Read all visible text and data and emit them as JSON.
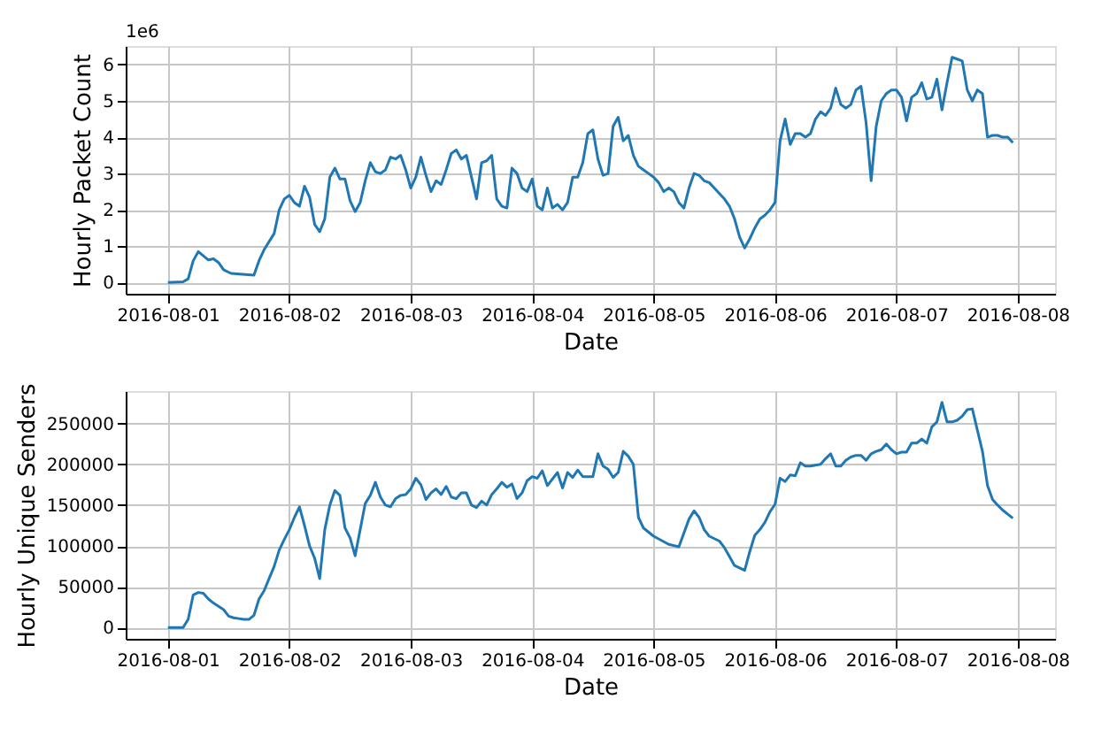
{
  "chart_data": [
    {
      "type": "line",
      "xlabel": "Date",
      "ylabel": "Hourly Packet Count",
      "annotations": [
        "1e6"
      ],
      "grid": true,
      "xlim": [
        "2016-07-31T15:39",
        "2016-08-08T07:21"
      ],
      "ylim": [
        -0.31,
        6.51
      ],
      "xticks": [
        "2016-08-01",
        "2016-08-02",
        "2016-08-03",
        "2016-08-04",
        "2016-08-05",
        "2016-08-06",
        "2016-08-07",
        "2016-08-08"
      ],
      "yticks": [
        0,
        1,
        2,
        3,
        4,
        5,
        6
      ],
      "x": [
        "2016-08-01T00:00",
        "2016-08-01T03:00",
        "2016-08-01T04:00",
        "2016-08-01T05:00",
        "2016-08-01T06:00",
        "2016-08-01T08:00",
        "2016-08-01T09:00",
        "2016-08-01T10:00",
        "2016-08-01T11:00",
        "2016-08-01T12:30",
        "2016-08-01T17:00",
        "2016-08-01T18:00",
        "2016-08-01T19:00",
        "2016-08-01T21:00",
        "2016-08-01T22:00",
        "2016-08-01T23:00",
        "2016-08-02T00:00",
        "2016-08-02T01:00",
        "2016-08-02T02:00",
        "2016-08-02T03:00",
        "2016-08-02T04:00",
        "2016-08-02T05:00",
        "2016-08-02T06:00",
        "2016-08-02T07:00",
        "2016-08-02T08:00",
        "2016-08-02T09:00",
        "2016-08-02T10:00",
        "2016-08-02T11:00",
        "2016-08-02T12:00",
        "2016-08-02T13:00",
        "2016-08-02T14:00",
        "2016-08-02T15:00",
        "2016-08-02T16:00",
        "2016-08-02T17:00",
        "2016-08-02T18:00",
        "2016-08-02T19:00",
        "2016-08-02T20:00",
        "2016-08-02T21:00",
        "2016-08-02T22:00",
        "2016-08-02T23:00",
        "2016-08-03T00:00",
        "2016-08-03T01:00",
        "2016-08-03T02:00",
        "2016-08-03T03:00",
        "2016-08-03T04:00",
        "2016-08-03T05:00",
        "2016-08-03T06:00",
        "2016-08-03T07:00",
        "2016-08-03T08:00",
        "2016-08-03T09:00",
        "2016-08-03T10:00",
        "2016-08-03T11:00",
        "2016-08-03T12:00",
        "2016-08-03T13:00",
        "2016-08-03T14:00",
        "2016-08-03T15:00",
        "2016-08-03T16:00",
        "2016-08-03T17:00",
        "2016-08-03T18:00",
        "2016-08-03T19:00",
        "2016-08-03T20:00",
        "2016-08-03T21:00",
        "2016-08-03T22:00",
        "2016-08-03T23:00",
        "2016-08-04T00:00",
        "2016-08-04T01:00",
        "2016-08-04T02:00",
        "2016-08-04T03:00",
        "2016-08-04T04:00",
        "2016-08-04T05:00",
        "2016-08-04T06:00",
        "2016-08-04T07:00",
        "2016-08-04T08:00",
        "2016-08-04T09:00",
        "2016-08-04T10:00",
        "2016-08-04T11:00",
        "2016-08-04T12:00",
        "2016-08-04T13:00",
        "2016-08-04T14:00",
        "2016-08-04T15:00",
        "2016-08-04T16:00",
        "2016-08-04T17:00",
        "2016-08-04T18:00",
        "2016-08-04T19:00",
        "2016-08-04T20:00",
        "2016-08-04T21:00",
        "2016-08-04T22:00",
        "2016-08-04T23:00",
        "2016-08-05T00:00",
        "2016-08-05T01:00",
        "2016-08-05T02:00",
        "2016-08-05T03:00",
        "2016-08-05T04:00",
        "2016-08-05T05:00",
        "2016-08-05T06:00",
        "2016-08-05T07:00",
        "2016-08-05T08:00",
        "2016-08-05T09:00",
        "2016-08-05T10:00",
        "2016-08-05T11:00",
        "2016-08-05T12:00",
        "2016-08-05T13:00",
        "2016-08-05T14:00",
        "2016-08-05T15:00",
        "2016-08-05T16:00",
        "2016-08-05T17:00",
        "2016-08-05T18:00",
        "2016-08-05T19:00",
        "2016-08-05T20:00",
        "2016-08-05T21:00",
        "2016-08-05T22:00",
        "2016-08-05T23:00",
        "2016-08-06T00:00",
        "2016-08-06T01:00",
        "2016-08-06T02:00",
        "2016-08-06T03:00",
        "2016-08-06T04:00",
        "2016-08-06T05:00",
        "2016-08-06T06:00",
        "2016-08-06T07:00",
        "2016-08-06T08:00",
        "2016-08-06T09:00",
        "2016-08-06T10:00",
        "2016-08-06T11:00",
        "2016-08-06T12:00",
        "2016-08-06T13:00",
        "2016-08-06T14:00",
        "2016-08-06T15:00",
        "2016-08-06T16:00",
        "2016-08-06T17:00",
        "2016-08-06T18:00",
        "2016-08-06T19:00",
        "2016-08-06T20:00",
        "2016-08-06T21:00",
        "2016-08-06T22:00",
        "2016-08-06T23:00",
        "2016-08-07T00:00",
        "2016-08-07T01:00",
        "2016-08-07T02:00",
        "2016-08-07T03:00",
        "2016-08-07T04:00",
        "2016-08-07T05:00",
        "2016-08-07T06:00",
        "2016-08-07T07:00",
        "2016-08-07T08:00",
        "2016-08-07T09:00",
        "2016-08-07T10:00",
        "2016-08-07T11:00",
        "2016-08-07T12:00",
        "2016-08-07T13:00",
        "2016-08-07T14:00",
        "2016-08-07T15:00",
        "2016-08-07T16:00",
        "2016-08-07T17:00",
        "2016-08-07T18:00",
        "2016-08-07T19:00",
        "2016-08-07T20:00",
        "2016-08-07T21:00",
        "2016-08-07T22:00",
        "2016-08-07T23:00"
      ],
      "series": [
        {
          "color": "#1f77b4",
          "values": [
            0,
            0.02,
            0.1,
            0.6,
            0.85,
            0.62,
            0.65,
            0.55,
            0.35,
            0.25,
            0.2,
            0.6,
            0.9,
            1.35,
            2.0,
            2.3,
            2.4,
            2.2,
            2.1,
            2.65,
            2.35,
            1.6,
            1.4,
            1.75,
            2.9,
            3.15,
            2.85,
            2.85,
            2.25,
            1.95,
            2.2,
            2.8,
            3.3,
            3.05,
            3.0,
            3.1,
            3.45,
            3.4,
            3.5,
            3.1,
            2.6,
            2.9,
            3.45,
            2.95,
            2.5,
            2.8,
            2.7,
            3.1,
            3.55,
            3.65,
            3.4,
            3.5,
            2.9,
            2.3,
            3.3,
            3.35,
            3.5,
            2.3,
            2.1,
            2.05,
            3.15,
            3.0,
            2.6,
            2.5,
            2.85,
            2.1,
            2.0,
            2.6,
            2.05,
            2.15,
            2.0,
            2.2,
            2.9,
            2.9,
            3.3,
            4.1,
            4.2,
            3.4,
            2.95,
            3.0,
            4.3,
            4.55,
            3.9,
            4.05,
            3.5,
            3.2,
            3.1,
            3.0,
            2.9,
            2.75,
            2.5,
            2.6,
            2.5,
            2.2,
            2.05,
            2.6,
            3.0,
            2.95,
            2.8,
            2.75,
            2.6,
            2.45,
            2.3,
            2.1,
            1.75,
            1.25,
            0.95,
            1.2,
            1.5,
            1.75,
            1.85,
            2.0,
            2.2,
            3.9,
            4.5,
            3.8,
            4.1,
            4.1,
            4.0,
            4.1,
            4.5,
            4.7,
            4.6,
            4.8,
            5.35,
            4.9,
            4.8,
            4.9,
            5.3,
            5.4,
            4.4,
            2.8,
            4.3,
            5.0,
            5.2,
            5.3,
            5.3,
            5.1,
            4.45,
            5.1,
            5.2,
            5.5,
            5.05,
            5.1,
            5.6,
            4.75,
            5.5,
            6.2,
            6.15,
            6.1,
            5.3,
            5.0,
            5.3,
            5.2,
            4.0,
            4.05,
            4.05,
            4.0,
            4.0,
            3.85
          ]
        }
      ]
    },
    {
      "type": "line",
      "xlabel": "Date",
      "ylabel": "Hourly Unique Senders",
      "grid": true,
      "xlim": [
        "2016-07-31T15:39",
        "2016-08-08T07:21"
      ],
      "ylim": [
        -13800,
        289800
      ],
      "xticks": [
        "2016-08-01",
        "2016-08-02",
        "2016-08-03",
        "2016-08-04",
        "2016-08-05",
        "2016-08-06",
        "2016-08-07",
        "2016-08-08"
      ],
      "yticks": [
        0,
        50000,
        100000,
        150000,
        200000,
        250000
      ],
      "x": [
        "2016-08-01T00:00",
        "2016-08-01T03:00",
        "2016-08-01T04:00",
        "2016-08-01T05:00",
        "2016-08-01T06:00",
        "2016-08-01T07:00",
        "2016-08-01T08:00",
        "2016-08-01T09:00",
        "2016-08-01T10:00",
        "2016-08-01T11:00",
        "2016-08-01T12:00",
        "2016-08-01T13:00",
        "2016-08-01T14:00",
        "2016-08-01T15:00",
        "2016-08-01T16:00",
        "2016-08-01T17:00",
        "2016-08-01T18:00",
        "2016-08-01T19:00",
        "2016-08-01T20:00",
        "2016-08-01T21:00",
        "2016-08-01T22:00",
        "2016-08-01T23:00",
        "2016-08-02T00:00",
        "2016-08-02T01:00",
        "2016-08-02T02:00",
        "2016-08-02T03:00",
        "2016-08-02T04:00",
        "2016-08-02T05:00",
        "2016-08-02T06:00",
        "2016-08-02T07:00",
        "2016-08-02T08:00",
        "2016-08-02T09:00",
        "2016-08-02T10:00",
        "2016-08-02T11:00",
        "2016-08-02T12:00",
        "2016-08-02T13:00",
        "2016-08-02T14:00",
        "2016-08-02T15:00",
        "2016-08-02T16:00",
        "2016-08-02T17:00",
        "2016-08-02T18:00",
        "2016-08-02T19:00",
        "2016-08-02T20:00",
        "2016-08-02T21:00",
        "2016-08-02T22:00",
        "2016-08-02T23:00",
        "2016-08-03T00:00",
        "2016-08-03T01:00",
        "2016-08-03T02:00",
        "2016-08-03T03:00",
        "2016-08-03T04:00",
        "2016-08-03T05:00",
        "2016-08-03T06:00",
        "2016-08-03T07:00",
        "2016-08-03T08:00",
        "2016-08-03T09:00",
        "2016-08-03T10:00",
        "2016-08-03T11:00",
        "2016-08-03T12:00",
        "2016-08-03T13:00",
        "2016-08-03T14:00",
        "2016-08-03T15:00",
        "2016-08-03T16:00",
        "2016-08-03T17:00",
        "2016-08-03T18:00",
        "2016-08-03T19:00",
        "2016-08-03T20:00",
        "2016-08-03T21:00",
        "2016-08-03T22:00",
        "2016-08-03T23:00",
        "2016-08-04T00:00",
        "2016-08-04T01:00",
        "2016-08-04T02:00",
        "2016-08-04T03:00",
        "2016-08-04T05:00",
        "2016-08-04T06:00",
        "2016-08-04T07:00",
        "2016-08-04T08:00",
        "2016-08-04T09:00",
        "2016-08-04T10:00",
        "2016-08-04T12:00",
        "2016-08-04T13:00",
        "2016-08-04T14:00",
        "2016-08-04T15:00",
        "2016-08-04T16:00",
        "2016-08-04T17:00",
        "2016-08-04T18:00",
        "2016-08-04T19:00",
        "2016-08-04T20:00",
        "2016-08-04T21:00",
        "2016-08-04T22:00",
        "2016-08-05T00:00",
        "2016-08-05T03:00",
        "2016-08-05T05:00",
        "2016-08-05T07:00",
        "2016-08-05T08:00",
        "2016-08-05T09:00",
        "2016-08-05T10:00",
        "2016-08-05T11:00",
        "2016-08-05T13:00",
        "2016-08-05T14:00",
        "2016-08-05T15:00",
        "2016-08-05T16:00",
        "2016-08-05T18:00",
        "2016-08-05T19:00",
        "2016-08-05T20:00",
        "2016-08-05T21:00",
        "2016-08-05T22:00",
        "2016-08-05T23:00",
        "2016-08-06T00:00",
        "2016-08-06T01:00",
        "2016-08-06T02:00",
        "2016-08-06T03:00",
        "2016-08-06T04:00",
        "2016-08-06T05:00",
        "2016-08-06T06:00",
        "2016-08-06T07:00",
        "2016-08-06T09:00",
        "2016-08-06T10:00",
        "2016-08-06T11:00",
        "2016-08-06T12:00",
        "2016-08-06T13:00",
        "2016-08-06T14:00",
        "2016-08-06T15:00",
        "2016-08-06T16:00",
        "2016-08-06T17:00",
        "2016-08-06T18:00",
        "2016-08-06T19:00",
        "2016-08-06T20:00",
        "2016-08-06T21:00",
        "2016-08-06T22:00",
        "2016-08-06T23:00",
        "2016-08-07T00:00",
        "2016-08-07T01:00",
        "2016-08-07T02:00",
        "2016-08-07T03:00",
        "2016-08-07T04:00",
        "2016-08-07T05:00",
        "2016-08-07T06:00",
        "2016-08-07T07:00",
        "2016-08-07T08:00",
        "2016-08-07T09:00",
        "2016-08-07T10:00",
        "2016-08-07T11:00",
        "2016-08-07T12:00",
        "2016-08-07T13:00",
        "2016-08-07T14:00",
        "2016-08-07T15:00",
        "2016-08-07T16:00",
        "2016-08-07T17:00",
        "2016-08-07T18:00",
        "2016-08-07T19:00",
        "2016-08-07T20:00",
        "2016-08-07T21:00",
        "2016-08-07T22:00",
        "2016-08-07T23:00"
      ],
      "series": [
        {
          "color": "#1f77b4",
          "values": [
            0,
            0,
            10000,
            40000,
            43000,
            42000,
            35000,
            30000,
            26000,
            22000,
            14000,
            12000,
            11000,
            10000,
            10000,
            15000,
            35000,
            45000,
            60000,
            75000,
            95000,
            108000,
            120000,
            135000,
            148000,
            125000,
            100000,
            85000,
            60000,
            120000,
            150000,
            168000,
            162000,
            122000,
            110000,
            88000,
            120000,
            152000,
            162000,
            178000,
            160000,
            150000,
            148000,
            158000,
            162000,
            163000,
            170000,
            183000,
            175000,
            157000,
            165000,
            170000,
            163000,
            173000,
            160000,
            158000,
            165000,
            165000,
            150000,
            147000,
            155000,
            150000,
            163000,
            170000,
            178000,
            172000,
            176000,
            158000,
            165000,
            180000,
            185000,
            183000,
            192000,
            174000,
            190000,
            171000,
            190000,
            184000,
            193000,
            185000,
            185000,
            213000,
            198000,
            194000,
            184000,
            190000,
            216000,
            210000,
            200000,
            135000,
            122000,
            112000,
            102000,
            99000,
            133000,
            143000,
            135000,
            120000,
            112000,
            106000,
            98000,
            87000,
            76000,
            70000,
            93000,
            113000,
            120000,
            129000,
            142000,
            151000,
            183000,
            179000,
            187000,
            186000,
            202000,
            198000,
            198000,
            200000,
            207000,
            213000,
            198000,
            198000,
            205000,
            209000,
            211000,
            211000,
            205000,
            213000,
            216000,
            218000,
            225000,
            218000,
            213000,
            215000,
            215000,
            226000,
            226000,
            231000,
            226000,
            246000,
            252000,
            276000,
            252000,
            252000,
            254000,
            259000,
            267000,
            268000,
            242000,
            216000,
            174000,
            157000,
            150000,
            144000,
            139000,
            134000
          ]
        }
      ]
    }
  ]
}
